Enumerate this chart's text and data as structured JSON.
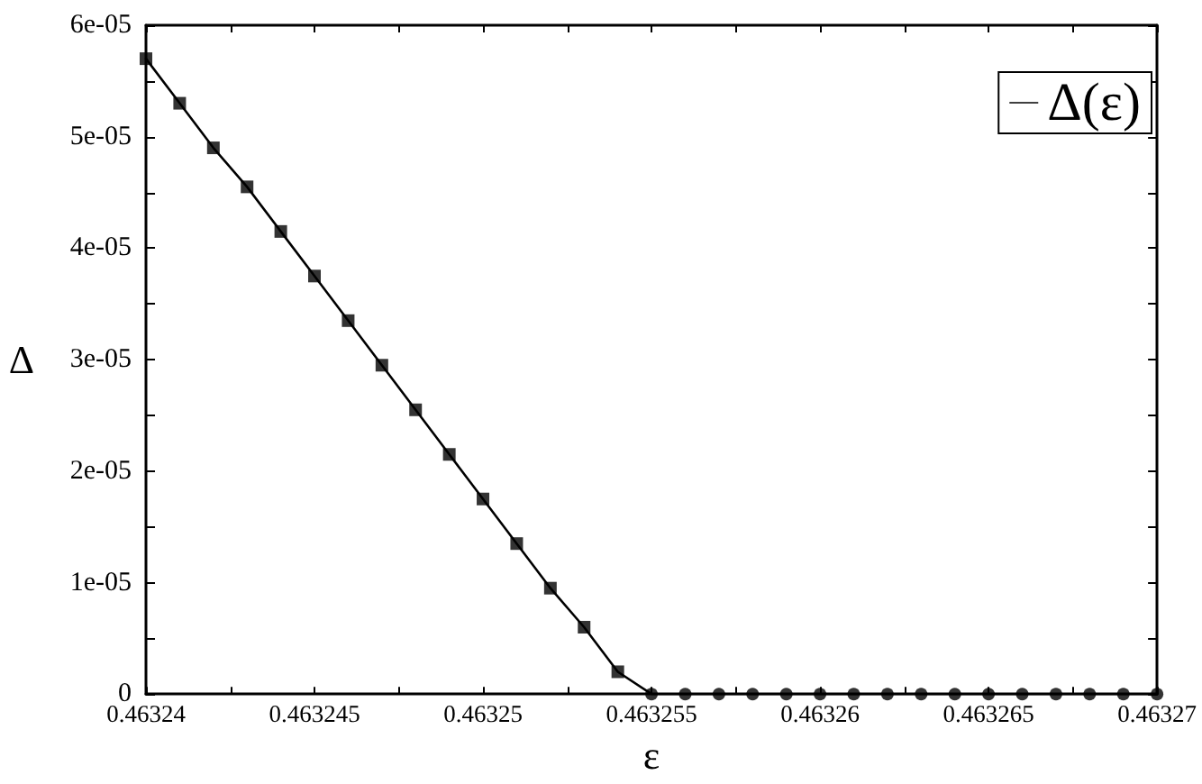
{
  "chart_data": {
    "type": "line",
    "xlabel": "ε",
    "ylabel": "Δ",
    "series": [
      {
        "name": "Δ(ε)",
        "color": "#000000",
        "marker": "none",
        "x": [
          0.46324,
          0.463241,
          0.463242,
          0.463243,
          0.463244,
          0.463245,
          0.463246,
          0.463247,
          0.463248,
          0.463249,
          0.46325,
          0.463251,
          0.463252,
          0.463253,
          0.463254,
          0.463255,
          0.463256,
          0.463257,
          0.463258,
          0.463259,
          0.46326,
          0.463261,
          0.463262,
          0.463263,
          0.463264,
          0.463265,
          0.463266,
          0.463267,
          0.463268,
          0.463269,
          0.46327
        ],
        "values": [
          5.7e-05,
          5.3e-05,
          4.9e-05,
          4.55e-05,
          4.15e-05,
          3.75e-05,
          3.35e-05,
          2.95e-05,
          2.55e-05,
          2.15e-05,
          1.75e-05,
          1.35e-05,
          9.5e-06,
          6e-06,
          2e-06,
          0,
          0,
          0,
          0,
          0,
          0,
          0,
          0,
          0,
          0,
          0,
          0,
          0,
          0,
          0,
          0
        ]
      },
      {
        "type": "scatter",
        "color": "#000000",
        "marker": "square",
        "x": [
          0.46324,
          0.463241,
          0.463242,
          0.463243,
          0.463244,
          0.463245,
          0.463246,
          0.463247,
          0.463248,
          0.463249,
          0.46325,
          0.463251,
          0.463252,
          0.463253,
          0.463254
        ],
        "values": [
          5.7e-05,
          5.3e-05,
          4.9e-05,
          4.55e-05,
          4.15e-05,
          3.75e-05,
          3.35e-05,
          2.95e-05,
          2.55e-05,
          2.15e-05,
          1.75e-05,
          1.35e-05,
          9.5e-06,
          6e-06,
          2e-06
        ]
      },
      {
        "type": "scatter",
        "color": "#000000",
        "marker": "circle",
        "x": [
          0.463255,
          0.463256,
          0.463257,
          0.463258,
          0.463259,
          0.46326,
          0.463261,
          0.463262,
          0.463263,
          0.463264,
          0.463265,
          0.463266,
          0.463267,
          0.463268,
          0.463269,
          0.46327
        ],
        "values": [
          0,
          0,
          0,
          0,
          0,
          0,
          0,
          0,
          0,
          0,
          0,
          0,
          0,
          0,
          0,
          0
        ]
      }
    ],
    "xlim": [
      0.46324,
      0.46327
    ],
    "xticks": [
      0.46324,
      {
        "value": 0.4632425,
        "label": null
      },
      0.463245,
      {
        "value": 0.4632475,
        "label": null
      },
      0.46325,
      {
        "value": 0.4632525,
        "label": null
      },
      0.463255,
      {
        "value": 0.4632575,
        "label": null
      },
      0.46326,
      {
        "value": 0.4632625,
        "label": null
      },
      0.463265,
      {
        "value": 0.4632675,
        "label": null
      },
      0.46327
    ],
    "ylim": [
      0,
      6e-05
    ],
    "yticks": [
      0,
      {
        "value": 5e-06,
        "label": null
      },
      {
        "value": 1e-05,
        "label": "1e-05"
      },
      {
        "value": 1.5e-05,
        "label": null
      },
      {
        "value": 2e-05,
        "label": "2e-05"
      },
      {
        "value": 2.5e-05,
        "label": null
      },
      {
        "value": 3e-05,
        "label": "3e-05"
      },
      {
        "value": 3.5e-05,
        "label": null
      },
      {
        "value": 4e-05,
        "label": "4e-05"
      },
      {
        "value": 4.5e-05,
        "label": null
      },
      {
        "value": 5e-05,
        "label": "5e-05"
      },
      {
        "value": 5.5e-05,
        "label": null
      },
      {
        "value": 6e-05,
        "label": "6e-05"
      }
    ],
    "grid": false,
    "legend": "top right",
    "line_style": "solid"
  }
}
